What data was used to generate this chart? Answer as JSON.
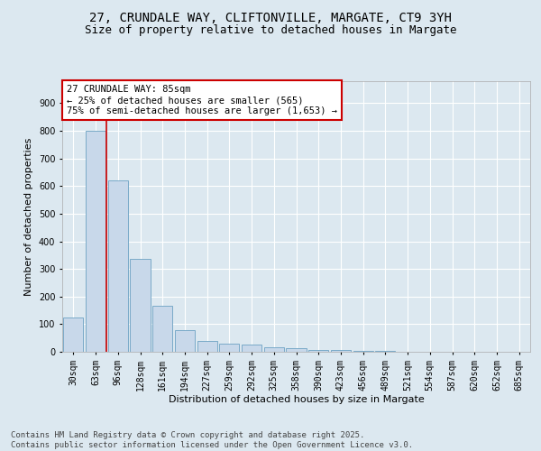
{
  "title_line1": "27, CRUNDALE WAY, CLIFTONVILLE, MARGATE, CT9 3YH",
  "title_line2": "Size of property relative to detached houses in Margate",
  "xlabel": "Distribution of detached houses by size in Margate",
  "ylabel": "Number of detached properties",
  "categories": [
    "30sqm",
    "63sqm",
    "96sqm",
    "128sqm",
    "161sqm",
    "194sqm",
    "227sqm",
    "259sqm",
    "292sqm",
    "325sqm",
    "358sqm",
    "390sqm",
    "423sqm",
    "456sqm",
    "489sqm",
    "521sqm",
    "554sqm",
    "587sqm",
    "620sqm",
    "652sqm",
    "685sqm"
  ],
  "values": [
    125,
    800,
    620,
    335,
    165,
    80,
    38,
    28,
    27,
    15,
    12,
    8,
    5,
    2,
    2,
    1,
    0,
    0,
    0,
    0,
    0
  ],
  "bar_color": "#c8d8ea",
  "bar_edge_color": "#7aaac8",
  "vline_color": "#cc0000",
  "annotation_text": "27 CRUNDALE WAY: 85sqm\n← 25% of detached houses are smaller (565)\n75% of semi-detached houses are larger (1,653) →",
  "annotation_box_color": "#ffffff",
  "annotation_edge_color": "#cc0000",
  "ylim": [
    0,
    980
  ],
  "yticks": [
    0,
    100,
    200,
    300,
    400,
    500,
    600,
    700,
    800,
    900
  ],
  "bg_color": "#dce8f0",
  "plot_bg_color": "#dce8f0",
  "footer": "Contains HM Land Registry data © Crown copyright and database right 2025.\nContains public sector information licensed under the Open Government Licence v3.0.",
  "title_fontsize": 10,
  "subtitle_fontsize": 9,
  "axis_label_fontsize": 8,
  "tick_fontsize": 7,
  "annotation_fontsize": 7.5,
  "footer_fontsize": 6.5
}
